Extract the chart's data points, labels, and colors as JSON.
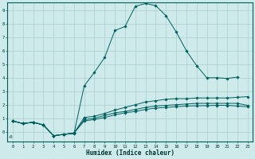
{
  "xlabel": "Humidex (Indice chaleur)",
  "bg_color": "#ceeaea",
  "grid_color": "#aacece",
  "line_color": "#006060",
  "xlim_min": -0.5,
  "xlim_max": 23.5,
  "ylim_min": -0.75,
  "ylim_max": 9.6,
  "xticks": [
    0,
    1,
    2,
    3,
    4,
    5,
    6,
    7,
    8,
    9,
    10,
    11,
    12,
    13,
    14,
    15,
    16,
    17,
    18,
    19,
    20,
    21,
    22,
    23
  ],
  "yticks": [
    0,
    1,
    2,
    3,
    4,
    5,
    6,
    7,
    8,
    9
  ],
  "line_peak_x": [
    0,
    1,
    2,
    3,
    4,
    5,
    6,
    7,
    8,
    9,
    10,
    11,
    12,
    13,
    14,
    15,
    16,
    17,
    18,
    19,
    20,
    21,
    22
  ],
  "line_peak_y": [
    0.8,
    0.6,
    0.7,
    0.5,
    -0.3,
    -0.2,
    -0.15,
    3.4,
    4.4,
    5.5,
    7.5,
    7.8,
    9.3,
    9.5,
    9.35,
    8.6,
    7.4,
    6.0,
    4.9,
    4.0,
    4.0,
    3.95,
    4.05
  ],
  "line_high_x": [
    0,
    1,
    2,
    3,
    4,
    5,
    6,
    7,
    8,
    9,
    10,
    11,
    12,
    13,
    14,
    15,
    16,
    17,
    18,
    19,
    20,
    21,
    22,
    23
  ],
  "line_high_y": [
    0.8,
    0.6,
    0.7,
    0.5,
    -0.3,
    -0.2,
    -0.1,
    1.05,
    1.15,
    1.35,
    1.6,
    1.8,
    2.0,
    2.2,
    2.3,
    2.4,
    2.45,
    2.45,
    2.5,
    2.5,
    2.5,
    2.5,
    2.55,
    2.6
  ],
  "line_mid_x": [
    0,
    1,
    2,
    3,
    4,
    5,
    6,
    7,
    8,
    9,
    10,
    11,
    12,
    13,
    14,
    15,
    16,
    17,
    18,
    19,
    20,
    21,
    22,
    23
  ],
  "line_mid_y": [
    0.8,
    0.6,
    0.7,
    0.5,
    -0.3,
    -0.2,
    -0.1,
    0.9,
    1.0,
    1.2,
    1.4,
    1.5,
    1.65,
    1.8,
    1.9,
    1.95,
    2.0,
    2.05,
    2.1,
    2.1,
    2.1,
    2.1,
    2.1,
    1.95
  ],
  "line_low_x": [
    0,
    1,
    2,
    3,
    4,
    5,
    6,
    7,
    8,
    9,
    10,
    11,
    12,
    13,
    14,
    15,
    16,
    17,
    18,
    19,
    20,
    21,
    22,
    23
  ],
  "line_low_y": [
    0.8,
    0.6,
    0.7,
    0.5,
    -0.3,
    -0.2,
    -0.1,
    0.8,
    0.9,
    1.05,
    1.25,
    1.4,
    1.5,
    1.65,
    1.75,
    1.8,
    1.85,
    1.9,
    1.92,
    1.93,
    1.95,
    1.95,
    1.9,
    1.85
  ]
}
